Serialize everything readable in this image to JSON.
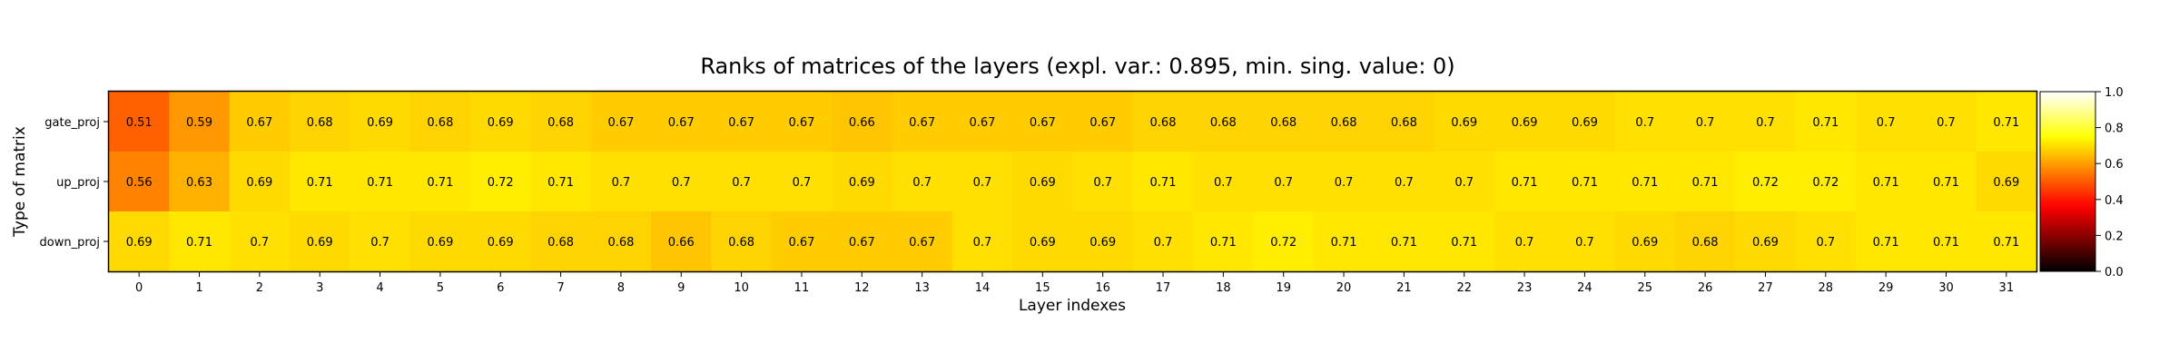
{
  "chart_data": {
    "type": "heatmap",
    "title": "Ranks of matrices of the layers (expl. var.: 0.895, min. sing. value: 0)",
    "xlabel": "Layer indexes",
    "ylabel": "Type of matrix",
    "x_categories": [
      "0",
      "1",
      "2",
      "3",
      "4",
      "5",
      "6",
      "7",
      "8",
      "9",
      "10",
      "11",
      "12",
      "13",
      "14",
      "15",
      "16",
      "17",
      "18",
      "19",
      "20",
      "21",
      "22",
      "23",
      "24",
      "25",
      "26",
      "27",
      "28",
      "29",
      "30",
      "31"
    ],
    "y_categories": [
      "gate_proj",
      "up_proj",
      "down_proj"
    ],
    "values": [
      [
        0.51,
        0.59,
        0.67,
        0.68,
        0.69,
        0.68,
        0.69,
        0.68,
        0.67,
        0.67,
        0.67,
        0.67,
        0.66,
        0.67,
        0.67,
        0.67,
        0.67,
        0.68,
        0.68,
        0.68,
        0.68,
        0.68,
        0.69,
        0.69,
        0.69,
        0.7,
        0.7,
        0.7,
        0.71,
        0.7,
        0.7,
        0.71
      ],
      [
        0.56,
        0.63,
        0.69,
        0.71,
        0.71,
        0.71,
        0.72,
        0.71,
        0.7,
        0.7,
        0.7,
        0.7,
        0.69,
        0.7,
        0.7,
        0.69,
        0.7,
        0.71,
        0.7,
        0.7,
        0.7,
        0.7,
        0.7,
        0.71,
        0.71,
        0.71,
        0.71,
        0.72,
        0.72,
        0.71,
        0.71,
        0.69
      ],
      [
        0.69,
        0.71,
        0.7,
        0.69,
        0.7,
        0.69,
        0.69,
        0.68,
        0.68,
        0.66,
        0.68,
        0.67,
        0.67,
        0.67,
        0.7,
        0.69,
        0.69,
        0.7,
        0.71,
        0.72,
        0.71,
        0.71,
        0.71,
        0.7,
        0.7,
        0.69,
        0.68,
        0.69,
        0.7,
        0.71,
        0.71,
        0.71
      ]
    ],
    "colormap": "hot",
    "vmin": 0.0,
    "vmax": 1.0,
    "colorbar_ticks": [
      "0.0",
      "0.2",
      "0.4",
      "0.6",
      "0.8",
      "1.0"
    ],
    "grid": false
  }
}
